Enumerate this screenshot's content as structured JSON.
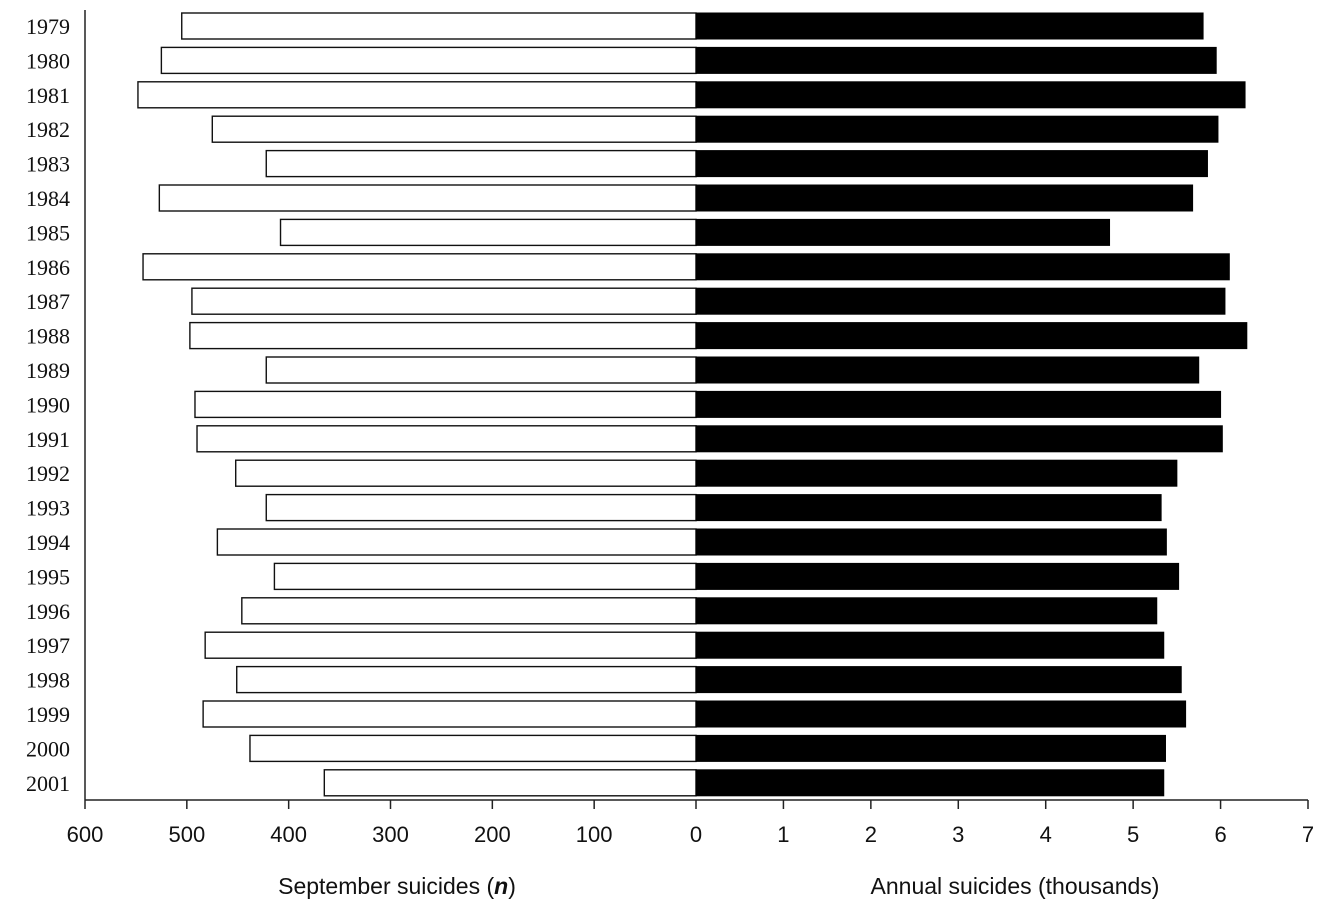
{
  "chart_data": {
    "type": "bar",
    "orientation": "horizontal",
    "categories": [
      "1979",
      "1980",
      "1981",
      "1982",
      "1983",
      "1984",
      "1985",
      "1986",
      "1987",
      "1988",
      "1989",
      "1990",
      "1991",
      "1992",
      "1993",
      "1994",
      "1995",
      "1996",
      "1997",
      "1998",
      "1999",
      "2000",
      "2001"
    ],
    "left_panel": {
      "name": "September suicides (n)",
      "xlabel_main": "September suicides (",
      "xlabel_italic": "n",
      "xlabel_end": ")",
      "xlim": [
        600,
        0
      ],
      "ticks": [
        "600",
        "500",
        "400",
        "300",
        "200",
        "100",
        "0"
      ],
      "tick_values": [
        600,
        500,
        400,
        300,
        200,
        100,
        0
      ],
      "values": [
        505,
        525,
        548,
        475,
        422,
        527,
        408,
        543,
        495,
        497,
        422,
        492,
        490,
        452,
        422,
        470,
        414,
        446,
        482,
        451,
        484,
        438,
        365
      ],
      "bar_color": "#ffffff",
      "bar_edge_color": "#111111"
    },
    "right_panel": {
      "name": "Annual suicides (thousands)",
      "xlabel": "Annual suicides (thousands)",
      "xlim": [
        0,
        7
      ],
      "ticks": [
        "1",
        "2",
        "3",
        "4",
        "5",
        "6",
        "7"
      ],
      "tick_values": [
        1,
        2,
        3,
        4,
        5,
        6,
        7
      ],
      "values": [
        5.8,
        5.95,
        6.28,
        5.97,
        5.85,
        5.68,
        4.73,
        6.1,
        6.05,
        6.3,
        5.75,
        6.0,
        6.02,
        5.5,
        5.32,
        5.38,
        5.52,
        5.27,
        5.35,
        5.55,
        5.6,
        5.37,
        5.35
      ],
      "bar_color": "#000000"
    },
    "legend": "none",
    "grid": false
  }
}
